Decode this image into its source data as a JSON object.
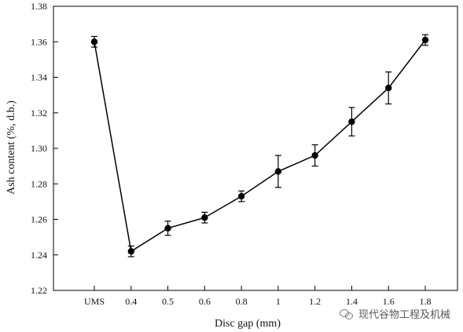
{
  "chart_data": {
    "type": "line",
    "categories": [
      "UMS",
      "0.4",
      "0.5",
      "0.6",
      "0.8",
      "1",
      "1.2",
      "1.4",
      "1.6",
      "1.8"
    ],
    "values": [
      1.36,
      1.242,
      1.255,
      1.261,
      1.273,
      1.287,
      1.296,
      1.315,
      1.334,
      1.361
    ],
    "error": [
      0.003,
      0.003,
      0.004,
      0.003,
      0.003,
      0.009,
      0.006,
      0.008,
      0.009,
      0.003
    ],
    "xlabel": "Disc gap (mm)",
    "ylabel": "Ash content (%, d.b.)",
    "ylim": [
      1.22,
      1.38
    ],
    "yticks": [
      "1.22",
      "1.24",
      "1.26",
      "1.28",
      "1.30",
      "1.32",
      "1.34",
      "1.36",
      "1.38"
    ],
    "grid": false,
    "legend": "none"
  },
  "watermark": {
    "text": "现代谷物工程及机械",
    "icon": "wechat-icon"
  }
}
